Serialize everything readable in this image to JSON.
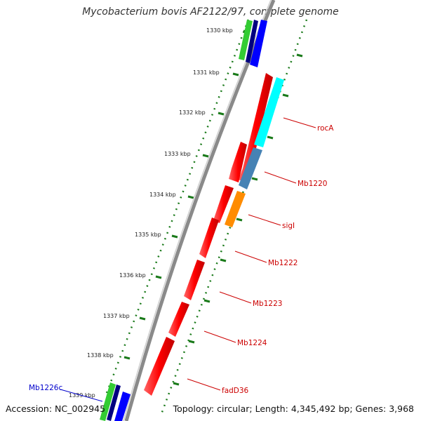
{
  "title": "Mycobacterium bovis AF2122/97, complete genome",
  "footer": {
    "accession": "Accession: NC_002945",
    "summary": "Topology: circular; Length: 4,345,492 bp; Genes: 3,968"
  },
  "tick_labels": [
    "1330 kbp",
    "1331 kbp",
    "1332 kbp",
    "1333 kbp",
    "1334 kbp",
    "1335 kbp",
    "1336 kbp",
    "1337 kbp",
    "1338 kbp",
    "1339 kbp"
  ],
  "gene_labels": [
    {
      "name": "rocA",
      "color": "#cc0000"
    },
    {
      "name": "Mb1220",
      "color": "#cc0000"
    },
    {
      "name": "sigI",
      "color": "#cc0000"
    },
    {
      "name": "Mb1222",
      "color": "#cc0000"
    },
    {
      "name": "Mb1223",
      "color": "#cc0000"
    },
    {
      "name": "Mb1224",
      "color": "#cc0000"
    },
    {
      "name": "fadD36",
      "color": "#cc0000"
    },
    {
      "name": "Mb1226c",
      "color": "#0000cc"
    }
  ],
  "colors": {
    "backbone": "#8a8a8a",
    "cds_reverse": "#ff0000",
    "cds_forward": "#0000ff",
    "orf_green": "#33cc33",
    "orf_navy": "#000080",
    "rocA_band": "#00ffff",
    "Mb1220_band": "#4682b4",
    "sigI_band": "#ff8c00",
    "tick_dots": "#1a7a1a"
  }
}
